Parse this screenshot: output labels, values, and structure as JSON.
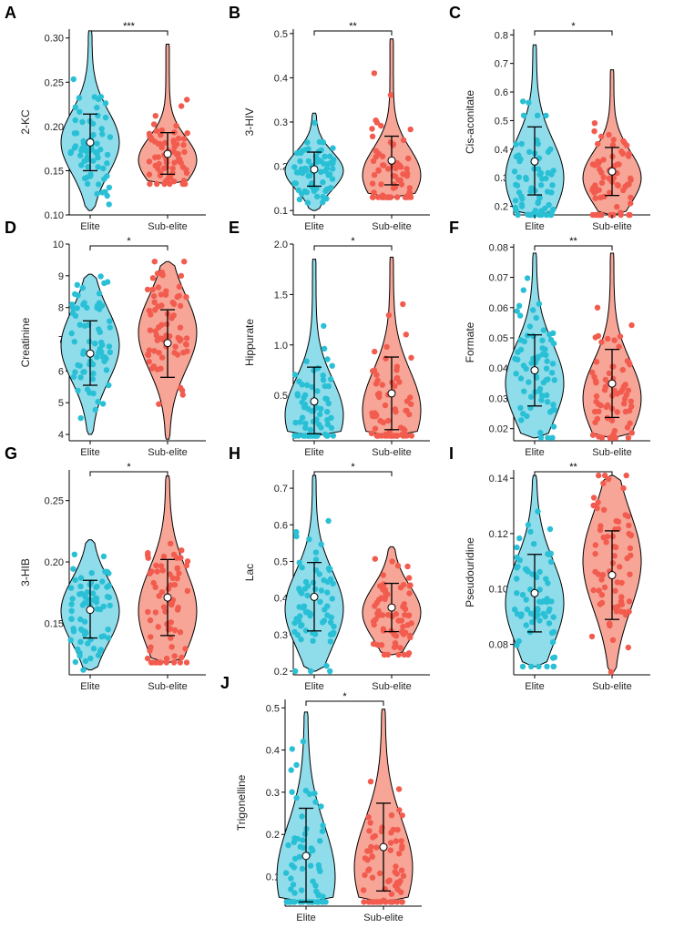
{
  "colors": {
    "elite": "#29c0d6",
    "elite_fill": "#8fdceb",
    "subelite": "#f25c4f",
    "subelite_fill": "#f6a597"
  },
  "chart_data": [
    {
      "letter": "A",
      "type": "violin",
      "ylabel": "2-KC",
      "ylim": [
        0.1,
        0.31
      ],
      "ticks": [
        0.1,
        0.15,
        0.2,
        0.25,
        0.3
      ],
      "tick_labels": [
        "0.10",
        "0.15",
        "0.20",
        "0.25",
        "0.30"
      ],
      "significance": "***",
      "categories": [
        "Elite",
        "Sub-elite"
      ],
      "series": [
        {
          "name": "Elite",
          "min": 0.105,
          "max": 0.308,
          "mean": 0.182,
          "lower": 0.15,
          "upper": 0.214,
          "mode": 0.182
        },
        {
          "name": "Sub-elite",
          "min": 0.135,
          "max": 0.293,
          "mean": 0.169,
          "lower": 0.146,
          "upper": 0.193,
          "mode": 0.162
        }
      ]
    },
    {
      "letter": "B",
      "type": "violin",
      "ylabel": "3-HIV",
      "ylim": [
        0.09,
        0.51
      ],
      "ticks": [
        0.1,
        0.2,
        0.3,
        0.4,
        0.5
      ],
      "tick_labels": [
        "0.1",
        "0.2",
        "0.3",
        "0.4",
        "0.5"
      ],
      "significance": "**",
      "categories": [
        "Elite",
        "Sub-elite"
      ],
      "series": [
        {
          "name": "Elite",
          "min": 0.1,
          "max": 0.32,
          "mean": 0.193,
          "lower": 0.155,
          "upper": 0.232,
          "mode": 0.19
        },
        {
          "name": "Sub-elite",
          "min": 0.13,
          "max": 0.488,
          "mean": 0.213,
          "lower": 0.158,
          "upper": 0.268,
          "mode": 0.18
        }
      ]
    },
    {
      "letter": "C",
      "type": "violin",
      "ylabel": "Cis-aconitate",
      "ylim": [
        0.17,
        0.82
      ],
      "ticks": [
        0.2,
        0.3,
        0.4,
        0.5,
        0.6,
        0.7,
        0.8
      ],
      "tick_labels": [
        "0.2",
        "0.3",
        "0.4",
        "0.5",
        "0.6",
        "0.7",
        "0.8"
      ],
      "significance": "*",
      "categories": [
        "Elite",
        "Sub-elite"
      ],
      "series": [
        {
          "name": "Elite",
          "min": 0.17,
          "max": 0.765,
          "mean": 0.357,
          "lower": 0.24,
          "upper": 0.478,
          "mode": 0.3
        },
        {
          "name": "Sub-elite",
          "min": 0.17,
          "max": 0.678,
          "mean": 0.322,
          "lower": 0.238,
          "upper": 0.406,
          "mode": 0.3
        }
      ]
    },
    {
      "letter": "D",
      "type": "violin",
      "ylabel": "Creatinine",
      "ylim": [
        3.8,
        10.0
      ],
      "ticks": [
        4,
        5,
        6,
        7,
        8,
        9,
        10
      ],
      "tick_labels": [
        "4",
        "5",
        "6",
        "7",
        "8",
        "9",
        "10"
      ],
      "significance": "*",
      "categories": [
        "Elite",
        "Sub-elite"
      ],
      "series": [
        {
          "name": "Elite",
          "min": 4.0,
          "max": 9.05,
          "mean": 6.55,
          "lower": 5.55,
          "upper": 7.58,
          "mode": 6.8
        },
        {
          "name": "Sub-elite",
          "min": 3.85,
          "max": 9.45,
          "mean": 6.88,
          "lower": 5.8,
          "upper": 7.93,
          "mode": 7.2
        }
      ]
    },
    {
      "letter": "E",
      "type": "violin",
      "ylabel": "Hippurate",
      "ylim": [
        0.05,
        2.0
      ],
      "ticks": [
        0.5,
        1.0,
        1.5,
        2.0
      ],
      "tick_labels": [
        "0.5",
        "1.0",
        "1.5",
        "2.0"
      ],
      "significance": "*",
      "categories": [
        "Elite",
        "Sub-elite"
      ],
      "series": [
        {
          "name": "Elite",
          "min": 0.1,
          "max": 1.85,
          "mean": 0.44,
          "lower": 0.12,
          "upper": 0.78,
          "mode": 0.3
        },
        {
          "name": "Sub-elite",
          "min": 0.1,
          "max": 1.87,
          "mean": 0.52,
          "lower": 0.16,
          "upper": 0.88,
          "mode": 0.35
        }
      ]
    },
    {
      "letter": "F",
      "type": "violin",
      "ylabel": "Formate",
      "ylim": [
        0.016,
        0.081
      ],
      "ticks": [
        0.02,
        0.03,
        0.04,
        0.05,
        0.06,
        0.07,
        0.08
      ],
      "tick_labels": [
        "0.02",
        "0.03",
        "0.04",
        "0.05",
        "0.06",
        "0.07",
        "0.08"
      ],
      "significance": "**",
      "categories": [
        "Elite",
        "Sub-elite"
      ],
      "series": [
        {
          "name": "Elite",
          "min": 0.017,
          "max": 0.078,
          "mean": 0.0393,
          "lower": 0.0275,
          "upper": 0.051,
          "mode": 0.035
        },
        {
          "name": "Sub-elite",
          "min": 0.017,
          "max": 0.078,
          "mean": 0.0349,
          "lower": 0.0237,
          "upper": 0.0462,
          "mode": 0.03
        }
      ]
    },
    {
      "letter": "G",
      "type": "violin",
      "ylabel": "3-HIB",
      "ylim": [
        0.108,
        0.275
      ],
      "ticks": [
        0.15,
        0.2,
        0.25
      ],
      "tick_labels": [
        "0.15",
        "0.20",
        "0.25"
      ],
      "significance": "*",
      "categories": [
        "Elite",
        "Sub-elite"
      ],
      "series": [
        {
          "name": "Elite",
          "min": 0.112,
          "max": 0.218,
          "mean": 0.161,
          "lower": 0.138,
          "upper": 0.185,
          "mode": 0.16
        },
        {
          "name": "Sub-elite",
          "min": 0.118,
          "max": 0.27,
          "mean": 0.171,
          "lower": 0.14,
          "upper": 0.202,
          "mode": 0.16
        }
      ]
    },
    {
      "letter": "H",
      "type": "violin",
      "ylabel": "Lac",
      "ylim": [
        0.19,
        0.75
      ],
      "ticks": [
        0.2,
        0.3,
        0.4,
        0.5,
        0.6,
        0.7
      ],
      "tick_labels": [
        "0.2",
        "0.3",
        "0.4",
        "0.5",
        "0.6",
        "0.7"
      ],
      "significance": "*",
      "categories": [
        "Elite",
        "Sub-elite"
      ],
      "series": [
        {
          "name": "Elite",
          "min": 0.2,
          "max": 0.735,
          "mean": 0.403,
          "lower": 0.31,
          "upper": 0.497,
          "mode": 0.37
        },
        {
          "name": "Sub-elite",
          "min": 0.245,
          "max": 0.54,
          "mean": 0.374,
          "lower": 0.308,
          "upper": 0.44,
          "mode": 0.36
        }
      ]
    },
    {
      "letter": "I",
      "type": "violin",
      "ylabel": "Pseudouridine",
      "ylim": [
        0.069,
        0.143
      ],
      "ticks": [
        0.08,
        0.1,
        0.12,
        0.14
      ],
      "tick_labels": [
        "0.08",
        "0.10",
        "0.12",
        "0.14"
      ],
      "significance": "**",
      "categories": [
        "Elite",
        "Sub-elite"
      ],
      "series": [
        {
          "name": "Elite",
          "min": 0.072,
          "max": 0.141,
          "mean": 0.0985,
          "lower": 0.0845,
          "upper": 0.1125,
          "mode": 0.095
        },
        {
          "name": "Sub-elite",
          "min": 0.07,
          "max": 0.141,
          "mean": 0.105,
          "lower": 0.089,
          "upper": 0.121,
          "mode": 0.11
        }
      ]
    },
    {
      "letter": "J",
      "type": "violin",
      "ylabel": "Trigonelline",
      "ylim": [
        0.03,
        0.52
      ],
      "ticks": [
        0.1,
        0.2,
        0.3,
        0.4,
        0.5
      ],
      "tick_labels": [
        "0.1",
        "0.2",
        "0.3",
        "0.4",
        "0.5"
      ],
      "significance": "*",
      "categories": [
        "Elite",
        "Sub-elite"
      ],
      "series": [
        {
          "name": "Elite",
          "min": 0.04,
          "max": 0.49,
          "mean": 0.149,
          "lower": 0.04,
          "upper": 0.262,
          "mode": 0.1
        },
        {
          "name": "Sub-elite",
          "min": 0.04,
          "max": 0.497,
          "mean": 0.17,
          "lower": 0.066,
          "upper": 0.274,
          "mode": 0.12
        }
      ]
    }
  ]
}
